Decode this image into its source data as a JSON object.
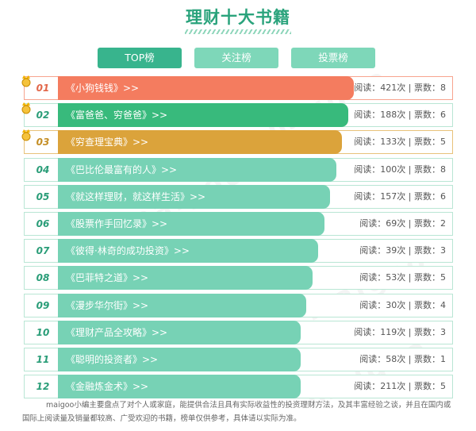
{
  "page": {
    "title": "理财十大书籍",
    "watermark": "maigoo"
  },
  "tabs": [
    {
      "label": "TOP榜",
      "active": true
    },
    {
      "label": "关注榜",
      "active": false
    },
    {
      "label": "投票榜",
      "active": false
    }
  ],
  "colors": {
    "rank1": "#f47c5f",
    "rank2": "#38ba7c",
    "rank3": "#dba33b",
    "rest": "#77d2b5"
  },
  "rows": [
    {
      "rank": "01",
      "title": "《小狗钱钱》>>",
      "stats": "阅读：421次 | 票数：8",
      "bar_fraction": 1.0,
      "color": "#f47c5f"
    },
    {
      "rank": "02",
      "title": "《富爸爸、穷爸爸》>>",
      "stats": "阅读：188次 | 票数：6",
      "bar_fraction": 0.98,
      "color": "#38ba7c"
    },
    {
      "rank": "03",
      "title": "《穷查理宝典》>>",
      "stats": "阅读：133次 | 票数：5",
      "bar_fraction": 0.96,
      "color": "#dba33b"
    },
    {
      "rank": "04",
      "title": "《巴比伦最富有的人》>>",
      "stats": "阅读：100次 | 票数：8",
      "bar_fraction": 0.94,
      "color": "#77d2b5"
    },
    {
      "rank": "05",
      "title": "《就这样理财，就这样生活》>>",
      "stats": "阅读：157次 | 票数：6",
      "bar_fraction": 0.92,
      "color": "#77d2b5"
    },
    {
      "rank": "06",
      "title": "《股票作手回忆录》>>",
      "stats": "阅读：69次 | 票数：2",
      "bar_fraction": 0.9,
      "color": "#77d2b5"
    },
    {
      "rank": "07",
      "title": "《彼得·林奇的成功投资》>>",
      "stats": "阅读：39次 | 票数：3",
      "bar_fraction": 0.88,
      "color": "#77d2b5"
    },
    {
      "rank": "08",
      "title": "《巴菲特之道》>>",
      "stats": "阅读：53次 | 票数：5",
      "bar_fraction": 0.86,
      "color": "#77d2b5"
    },
    {
      "rank": "09",
      "title": "《漫步华尔街》>>",
      "stats": "阅读：30次 | 票数：4",
      "bar_fraction": 0.84,
      "color": "#77d2b5"
    },
    {
      "rank": "10",
      "title": "《理财产品全攻略》>>",
      "stats": "阅读：119次 | 票数：3",
      "bar_fraction": 0.82,
      "color": "#77d2b5"
    },
    {
      "rank": "11",
      "title": "《聪明的投资者》>>",
      "stats": "阅读：58次 | 票数：1",
      "bar_fraction": 0.82,
      "color": "#77d2b5"
    },
    {
      "rank": "12",
      "title": "《金融炼金术》>>",
      "stats": "阅读：211次 | 票数：5",
      "bar_fraction": 0.82,
      "color": "#77d2b5"
    }
  ],
  "footer": {
    "text": "maigoo小编主要盘点了对个人或家庭，能提供合法且具有实际收益性的投资理财方法，及其丰富经验之谈，并且在国内或国际上阅读量及销量都较高、广受欢迎的书籍，榜单仅供参考，具体请以实际为准。"
  }
}
